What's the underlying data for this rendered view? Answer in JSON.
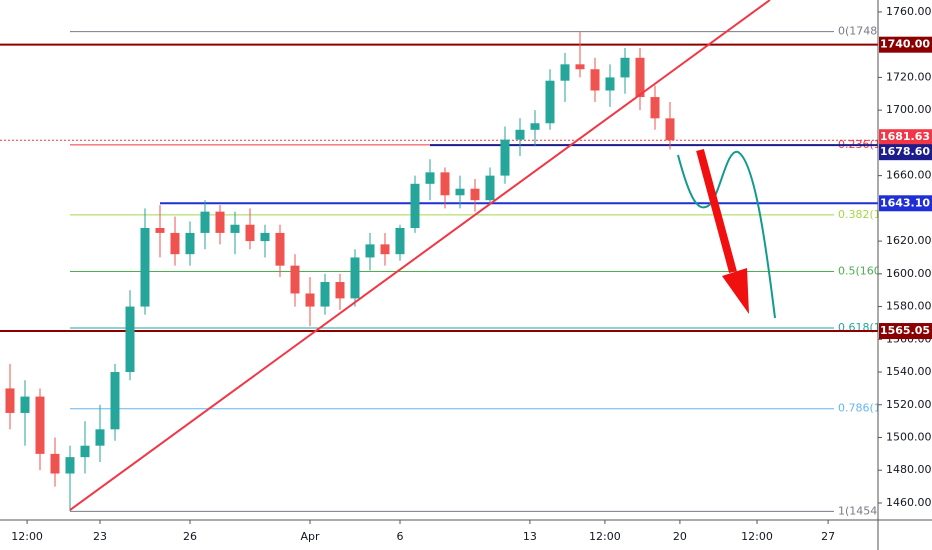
{
  "chart_data": {
    "type": "candlestick",
    "up_color": "#26a69a",
    "down_color": "#ef5350",
    "x": [
      -3.0,
      -2.5,
      -2.0,
      -1.5,
      -1.0,
      -0.5,
      0,
      0.5,
      1.0,
      1.5,
      2.0,
      2.5,
      3.0,
      3.5,
      4.0,
      4.5,
      5.0,
      5.5,
      6.0,
      6.5,
      7.0,
      7.5,
      8.0,
      8.5,
      9.0,
      9.5,
      10.0,
      10.5,
      11.0,
      11.5,
      12.0,
      12.5,
      13.0,
      13.5,
      14.0,
      14.5,
      15.0,
      15.5,
      16.0,
      16.5,
      17.0,
      17.5,
      18.0,
      18.5,
      19.0
    ],
    "open": [
      1530,
      1515,
      1525,
      1490,
      1478,
      1488,
      1495,
      1505,
      1540,
      1580,
      1628,
      1625,
      1612,
      1625,
      1638,
      1625,
      1630,
      1620,
      1625,
      1605,
      1588,
      1580,
      1595,
      1585,
      1610,
      1618,
      1612,
      1628,
      1655,
      1662,
      1648,
      1652,
      1645,
      1660,
      1682,
      1688,
      1692,
      1718,
      1728,
      1725,
      1712,
      1720,
      1732,
      1708,
      1695
    ],
    "high": [
      1545,
      1535,
      1530,
      1500,
      1495,
      1510,
      1520,
      1545,
      1590,
      1640,
      1642,
      1635,
      1632,
      1645,
      1642,
      1638,
      1640,
      1630,
      1630,
      1612,
      1598,
      1600,
      1600,
      1615,
      1625,
      1625,
      1630,
      1660,
      1670,
      1665,
      1660,
      1658,
      1665,
      1690,
      1695,
      1700,
      1725,
      1735,
      1748,
      1732,
      1728,
      1738,
      1738,
      1715,
      1705
    ],
    "low": [
      1505,
      1495,
      1480,
      1470,
      1455,
      1478,
      1485,
      1498,
      1535,
      1575,
      1610,
      1605,
      1605,
      1615,
      1618,
      1612,
      1615,
      1610,
      1598,
      1580,
      1568,
      1575,
      1578,
      1580,
      1602,
      1605,
      1608,
      1625,
      1645,
      1640,
      1640,
      1638,
      1642,
      1655,
      1672,
      1678,
      1688,
      1705,
      1720,
      1705,
      1702,
      1710,
      1700,
      1688,
      1676
    ],
    "close": [
      1515,
      1525,
      1490,
      1478,
      1488,
      1495,
      1505,
      1540,
      1580,
      1628,
      1625,
      1612,
      1625,
      1638,
      1625,
      1630,
      1620,
      1625,
      1605,
      1588,
      1580,
      1595,
      1585,
      1610,
      1618,
      1612,
      1628,
      1655,
      1662,
      1648,
      1652,
      1645,
      1660,
      1682,
      1688,
      1692,
      1718,
      1728,
      1725,
      1712,
      1720,
      1732,
      1708,
      1695,
      1681.6
    ],
    "xlim": [
      -3.333,
      25.933
    ],
    "ylim": [
      1449.6,
      1767.3
    ],
    "xticks": [
      {
        "value": -2.43,
        "label": "12:00"
      },
      {
        "value": 0,
        "label": "23"
      },
      {
        "value": 3,
        "label": "26"
      },
      {
        "value": 7,
        "label": "Apr"
      },
      {
        "value": 10,
        "label": "6"
      },
      {
        "value": 14.33,
        "label": "13"
      },
      {
        "value": 16.83,
        "label": "12:00"
      },
      {
        "value": 19.33,
        "label": "20"
      },
      {
        "value": 21.9,
        "label": "12:00"
      },
      {
        "value": 24.27,
        "label": "27"
      }
    ],
    "yticks": [
      {
        "value": 1460,
        "label": "1460.00"
      },
      {
        "value": 1480,
        "label": "1480.00"
      },
      {
        "value": 1500,
        "label": "1500.00"
      },
      {
        "value": 1520,
        "label": "1520.00"
      },
      {
        "value": 1540,
        "label": "1540.00"
      },
      {
        "value": 1560,
        "label": "1560.00"
      },
      {
        "value": 1580,
        "label": "1580.00"
      },
      {
        "value": 1600,
        "label": "1600.00"
      },
      {
        "value": 1620,
        "label": "1620.00"
      },
      {
        "value": 1660,
        "label": "1660.00"
      },
      {
        "value": 1700,
        "label": "1700.00"
      },
      {
        "value": 1720,
        "label": "1720.00"
      },
      {
        "value": 1760,
        "label": "1760.00"
      }
    ],
    "fib_levels": [
      {
        "value": 1748.0,
        "label": "0(1748.0",
        "color": "#787b86"
      },
      {
        "value": 1678.8,
        "label": "0.236(1",
        "color": "#f23645"
      },
      {
        "value": 1636.0,
        "label": "0.382(16",
        "color": "#a5d64a"
      },
      {
        "value": 1601.45,
        "label": "0.5(160",
        "color": "#4caf50"
      },
      {
        "value": 1566.9,
        "label": "0.618(1",
        "color": "#26a69a"
      },
      {
        "value": 1517.6,
        "label": "0.786(15",
        "color": "#64b5f6"
      },
      {
        "value": 1454.9,
        "label": "1(1454.9",
        "color": "#787b86"
      }
    ],
    "price_lines": [
      {
        "value": 1740.0,
        "label": "1740.00",
        "color": "#8b0000"
      },
      {
        "value": 1681.63,
        "label": "1681.63",
        "color": "#f23645"
      },
      {
        "value": 1678.6,
        "label": "1678.60",
        "color": "#1c1c8c"
      },
      {
        "value": 1643.1,
        "label": "1643.10",
        "color": "#1f2fd6"
      },
      {
        "value": 1565.05,
        "label": "1565.05",
        "color": "#8b0000"
      }
    ],
    "trendline": {
      "x": [
        -1.0,
        22.33
      ],
      "y": [
        1455.7,
        1767.3
      ],
      "color": "#f23645"
    }
  }
}
